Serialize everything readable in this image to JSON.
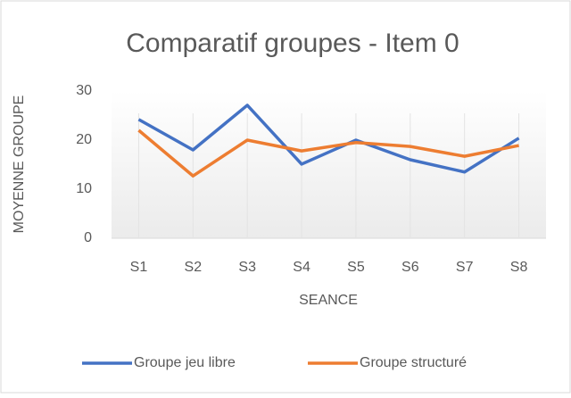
{
  "chart_data": {
    "type": "line",
    "title": "Comparatif groupes - Item 0",
    "x_label": "SEANCE",
    "y_label": "MOYENNE GROUPE",
    "categories": [
      "S1",
      "S2",
      "S3",
      "S4",
      "S5",
      "S6",
      "S7",
      "S8"
    ],
    "series": [
      {
        "name": "Groupe jeu libre",
        "color": "#4472c4",
        "values": [
          24.2,
          18,
          27.1,
          15.1,
          20,
          16,
          13.5,
          20.4
        ]
      },
      {
        "name": "Groupe structuré",
        "color": "#ed7d31",
        "values": [
          22,
          12.7,
          20,
          17.8,
          19.5,
          18.7,
          16.7,
          18.9
        ]
      }
    ],
    "ylim": [
      0,
      30
    ],
    "yticks": [
      0,
      10,
      20,
      30
    ],
    "xgrid": true,
    "legend": "bottom"
  }
}
